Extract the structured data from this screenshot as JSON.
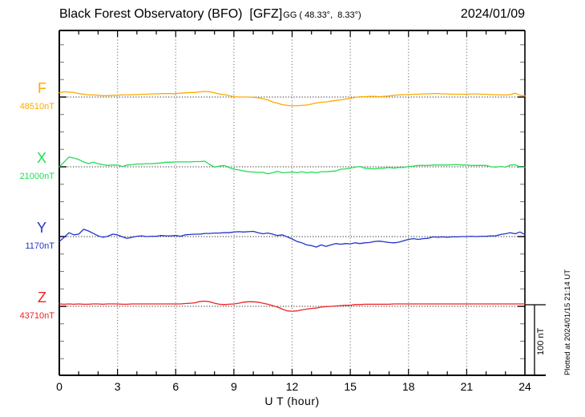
{
  "chart_data": {
    "type": "line",
    "title": "Black Forest Observatory (BFO)  [GFZ]",
    "subtitle": "GG ( 48.33°,  8.33°)",
    "date": "2024/01/09",
    "xlabel": "U T (hour)",
    "ylabel": "",
    "units": "nT",
    "x_range": [
      0,
      24
    ],
    "x_ticks": [
      0,
      3,
      6,
      9,
      12,
      15,
      18,
      21,
      24
    ],
    "x_minor_step": 1,
    "grid": true,
    "baseline_spacing_nT": 100,
    "y_minor_tick_nT": 25,
    "scale_bar": {
      "label": "100 nT",
      "nT": 100
    },
    "plotted_note": "Plotted at 2024/01/15 21:14 UT",
    "series": [
      {
        "name": "F",
        "baseline_label": "48510nT",
        "color": "#FFAA00",
        "offsets_nT": [
          6,
          7.5,
          7,
          6.5,
          5,
          4,
          3,
          3,
          2.5,
          2,
          2,
          2.5,
          2.5,
          3,
          3,
          3.5,
          3.5,
          4,
          4,
          4.5,
          4.5,
          5,
          5,
          5,
          5,
          5.5,
          6,
          6.5,
          6.5,
          7.5,
          8,
          7.5,
          6,
          4.5,
          3.5,
          2,
          0.5,
          0,
          0,
          0,
          -0.5,
          -1,
          -2.5,
          -4,
          -7,
          -9,
          -11,
          -12,
          -12.5,
          -12.5,
          -12,
          -11.5,
          -10,
          -8.5,
          -7.5,
          -7,
          -6,
          -5,
          -4,
          -3,
          -2,
          -0.5,
          0.5,
          0.5,
          1,
          1,
          0.5,
          1,
          1.5,
          2.5,
          3,
          3.5,
          3.5,
          4,
          4,
          4.5,
          4.5,
          5,
          5,
          4.5,
          4.5,
          4,
          4,
          4,
          4,
          4.5,
          4.5,
          4,
          4,
          3.5,
          3.5,
          3,
          3,
          3.5,
          5.5,
          2.5,
          1.5
        ]
      },
      {
        "name": "X",
        "baseline_label": "21000nT",
        "color": "#22DD55",
        "offsets_nT": [
          0,
          7,
          14,
          12.5,
          10.5,
          7,
          4.5,
          6.5,
          4.5,
          3,
          2,
          2.5,
          2.5,
          0.5,
          2.5,
          3,
          4,
          4,
          4.5,
          4.5,
          5,
          5.5,
          6.5,
          6.5,
          7,
          7,
          7,
          7,
          7.5,
          7.5,
          8,
          3.5,
          -0.5,
          1,
          2,
          -1,
          -3.5,
          -4.5,
          -6,
          -7,
          -7.5,
          -8,
          -8,
          -10,
          -8.5,
          -6.5,
          -8.5,
          -8,
          -7.5,
          -8.5,
          -7,
          -8.5,
          -7.5,
          -8.5,
          -7,
          -7,
          -6.5,
          -6,
          -3.5,
          -3,
          -2,
          -0.5,
          0.5,
          -2,
          -2.5,
          -3,
          -2,
          -2,
          -1,
          -2,
          -1,
          -1,
          0.5,
          1,
          2,
          2,
          2,
          2.5,
          2.5,
          2.5,
          2.5,
          3,
          3,
          2.5,
          2.5,
          2,
          2,
          2,
          2,
          0,
          -0.5,
          0.5,
          -0.5,
          2.5,
          3,
          -0.5,
          -0.5
        ]
      },
      {
        "name": "Y",
        "baseline_label": "1170nT",
        "color": "#2233CC",
        "offsets_nT": [
          -7,
          -1,
          5.5,
          2.5,
          3.5,
          10.5,
          8,
          4.5,
          1,
          -1,
          0.5,
          3.5,
          2.5,
          -0.5,
          -2.5,
          -1,
          0.5,
          1,
          0,
          0.5,
          0.5,
          1.5,
          1,
          1,
          1.5,
          0.5,
          2.5,
          3,
          3.5,
          3.5,
          4.5,
          4.5,
          5,
          5,
          5.5,
          5.5,
          6.5,
          7,
          6.5,
          7,
          7.5,
          5.5,
          4,
          5,
          3.5,
          1.5,
          2.5,
          -0.5,
          -3.5,
          -7,
          -9,
          -12,
          -13,
          -15,
          -12,
          -14,
          -12,
          -10,
          -11,
          -10,
          -10.5,
          -9,
          -10,
          -9,
          -8.5,
          -7,
          -6.5,
          -7.5,
          -8.5,
          -9,
          -8,
          -6,
          -4,
          -3,
          -4,
          -3,
          -2.5,
          -0.5,
          -1,
          -0.5,
          -1,
          -0.5,
          -0.5,
          0,
          0,
          0.5,
          0,
          0.5,
          0.5,
          1,
          1,
          3,
          4,
          5.5,
          4,
          6.5,
          3
        ]
      },
      {
        "name": "Z",
        "baseline_label": "43710nT",
        "color": "#EE2222",
        "offsets_nT": [
          3.5,
          3,
          3.5,
          3,
          3.5,
          3,
          3,
          3.5,
          3.5,
          3,
          3.5,
          3.5,
          3.5,
          3,
          3,
          3.5,
          3.5,
          3.5,
          3.5,
          3.5,
          3.5,
          3.5,
          3.5,
          3.5,
          3.5,
          3.5,
          4,
          4.5,
          5,
          7,
          7.5,
          6.5,
          4.5,
          3,
          2.5,
          3,
          3.5,
          4.5,
          6,
          6.5,
          6.5,
          6,
          4.5,
          3,
          1,
          -1,
          -4,
          -6.5,
          -7,
          -6.5,
          -5,
          -4,
          -3,
          -2.5,
          -1,
          -0.5,
          0,
          0.5,
          1,
          1.5,
          1.5,
          2.5,
          2.5,
          3,
          3,
          3,
          3,
          3,
          3,
          3.5,
          3.5,
          3.5,
          3.5,
          3.5,
          3.5,
          3.5,
          3.5,
          3.5,
          3.5,
          3.5,
          3.5,
          3.5,
          3.5,
          3.5,
          3.5,
          3.5,
          3.5,
          3.5,
          3.5,
          3.5,
          3.5,
          3.5,
          3.5,
          3.5,
          3.5,
          3.5,
          3.5
        ]
      }
    ],
    "colors": {
      "grid": "#8a8a8a",
      "axis": "#000000",
      "baseline_dots": "#222222"
    }
  }
}
